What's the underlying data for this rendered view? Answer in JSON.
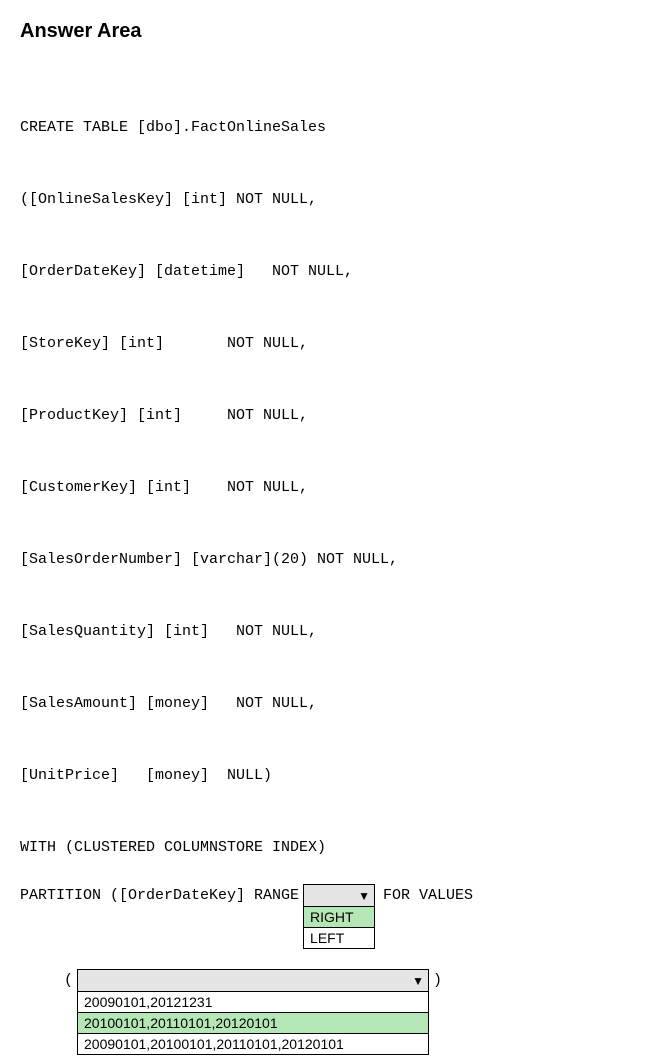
{
  "title": "Answer Area",
  "code": {
    "line1": "CREATE TABLE [dbo].FactOnlineSales",
    "line2": "([OnlineSalesKey] [int] NOT NULL,",
    "line3": "[OrderDateKey] [datetime]   NOT NULL,",
    "line4": "[StoreKey] [int]       NOT NULL,",
    "line5": "[ProductKey] [int]     NOT NULL,",
    "line6": "[CustomerKey] [int]    NOT NULL,",
    "line7": "[SalesOrderNumber] [varchar](20) NOT NULL,",
    "line8": "[SalesQuantity] [int]   NOT NULL,",
    "line9": "[SalesAmount] [money]   NOT NULL,",
    "line10": "[UnitPrice]   [money]  NULL)",
    "line11": "WITH (CLUSTERED COLUMNSTORE INDEX)",
    "line12_prefix": "PARTITION ([OrderDateKey] RANGE",
    "line12_suffix": "FOR VALUES"
  },
  "dropdown1": {
    "options": [
      {
        "label": "RIGHT",
        "selected": true
      },
      {
        "label": "LEFT",
        "selected": false
      }
    ]
  },
  "dropdown2": {
    "open_paren": "(",
    "close_paren": ")",
    "options": [
      {
        "label": "20090101,20121231",
        "selected": false
      },
      {
        "label": "20100101,20110101,20120101",
        "selected": true
      },
      {
        "label": "20090101,20100101,20110101,20120101",
        "selected": false
      }
    ]
  },
  "colors": {
    "selected_bg": "#b5e6b5",
    "header_bg": "#e5e5e5"
  }
}
